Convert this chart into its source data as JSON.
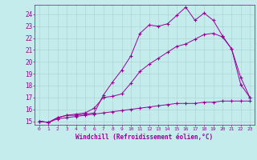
{
  "xlabel": "Windchill (Refroidissement éolien,°C)",
  "xlim": [
    -0.5,
    23.5
  ],
  "ylim": [
    14.7,
    24.8
  ],
  "yticks": [
    15,
    16,
    17,
    18,
    19,
    20,
    21,
    22,
    23,
    24
  ],
  "xticks": [
    0,
    1,
    2,
    3,
    4,
    5,
    6,
    7,
    8,
    9,
    10,
    11,
    12,
    13,
    14,
    15,
    16,
    17,
    18,
    19,
    20,
    21,
    22,
    23
  ],
  "background_color": "#c5eced",
  "line_color": "#990099",
  "grid_color": "#b0d4d4",
  "line1_x": [
    0,
    1,
    2,
    3,
    4,
    5,
    6,
    7,
    8,
    9,
    10,
    11,
    12,
    13,
    14,
    15,
    16,
    17,
    18,
    19,
    20,
    21,
    22,
    23
  ],
  "line1_y": [
    15.0,
    14.9,
    15.3,
    15.5,
    15.5,
    15.6,
    15.7,
    17.2,
    18.3,
    19.3,
    20.5,
    22.4,
    23.1,
    23.0,
    23.2,
    23.9,
    24.6,
    23.5,
    24.1,
    23.5,
    22.2,
    21.1,
    18.7,
    17.0
  ],
  "line2_x": [
    0,
    1,
    2,
    3,
    4,
    5,
    6,
    7,
    8,
    9,
    10,
    11,
    12,
    13,
    14,
    15,
    16,
    17,
    18,
    19,
    20,
    21,
    22,
    23
  ],
  "line2_y": [
    15.0,
    14.9,
    15.3,
    15.5,
    15.6,
    15.7,
    16.1,
    17.0,
    17.1,
    17.3,
    18.2,
    19.2,
    19.8,
    20.3,
    20.8,
    21.3,
    21.5,
    21.9,
    22.3,
    22.4,
    22.1,
    21.1,
    18.1,
    17.0
  ],
  "line3_x": [
    0,
    1,
    2,
    3,
    4,
    5,
    6,
    7,
    8,
    9,
    10,
    11,
    12,
    13,
    14,
    15,
    16,
    17,
    18,
    19,
    20,
    21,
    22,
    23
  ],
  "line3_y": [
    15.0,
    14.9,
    15.2,
    15.3,
    15.4,
    15.5,
    15.6,
    15.7,
    15.8,
    15.9,
    16.0,
    16.1,
    16.2,
    16.3,
    16.4,
    16.5,
    16.5,
    16.5,
    16.6,
    16.6,
    16.7,
    16.7,
    16.7,
    16.7
  ]
}
